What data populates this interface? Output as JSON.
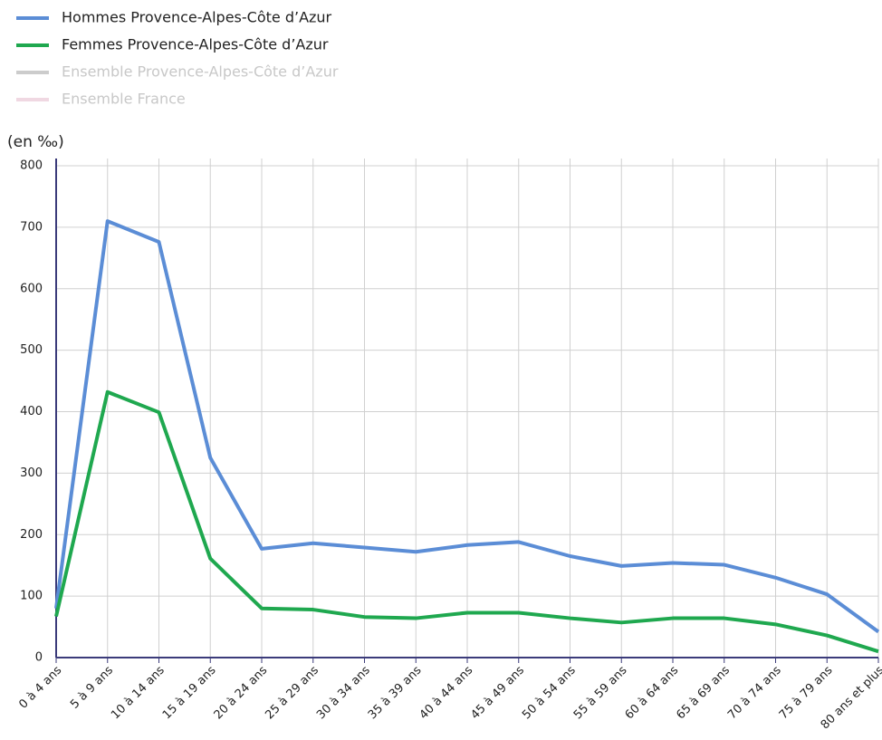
{
  "chart_data": {
    "type": "line",
    "y_label": "(en ‰)",
    "categories": [
      "0 à 4 ans",
      "5 à 9 ans",
      "10 à 14 ans",
      "15 à 19 ans",
      "20 à 24 ans",
      "25 à 29 ans",
      "30 à 34 ans",
      "35 à 39 ans",
      "40 à 44 ans",
      "45 à 49 ans",
      "50 à 54 ans",
      "55 à 59 ans",
      "60 à 64 ans",
      "65 à 69 ans",
      "70 à 74 ans",
      "75 à 79 ans",
      "80 ans et plus"
    ],
    "series": [
      {
        "name": "Hommes Provence-Alpes-Côte d’Azur",
        "color": "#5b8dd6",
        "visible": true,
        "values": [
          80,
          710,
          676,
          325,
          177,
          186,
          179,
          172,
          183,
          188,
          165,
          149,
          154,
          151,
          130,
          103,
          42
        ]
      },
      {
        "name": "Femmes Provence-Alpes-Côte d’Azur",
        "color": "#1fa84f",
        "visible": true,
        "values": [
          67,
          432,
          399,
          161,
          80,
          78,
          66,
          64,
          73,
          73,
          64,
          57,
          64,
          64,
          54,
          36,
          10
        ]
      },
      {
        "name": "Ensemble Provence-Alpes-Côte d’Azur",
        "color": "#cccccc",
        "visible": false,
        "values": [
          null,
          null,
          null,
          null,
          null,
          null,
          null,
          null,
          null,
          null,
          null,
          null,
          null,
          null,
          null,
          null,
          null
        ]
      },
      {
        "name": "Ensemble France",
        "color": "#f0d8e2",
        "visible": false,
        "values": [
          null,
          null,
          null,
          null,
          null,
          null,
          null,
          null,
          null,
          null,
          null,
          null,
          null,
          null,
          null,
          null,
          null
        ]
      }
    ],
    "ylim": [
      0,
      800
    ],
    "yticks": [
      0,
      100,
      200,
      300,
      400,
      500,
      600,
      700,
      800
    ],
    "grid": true
  }
}
